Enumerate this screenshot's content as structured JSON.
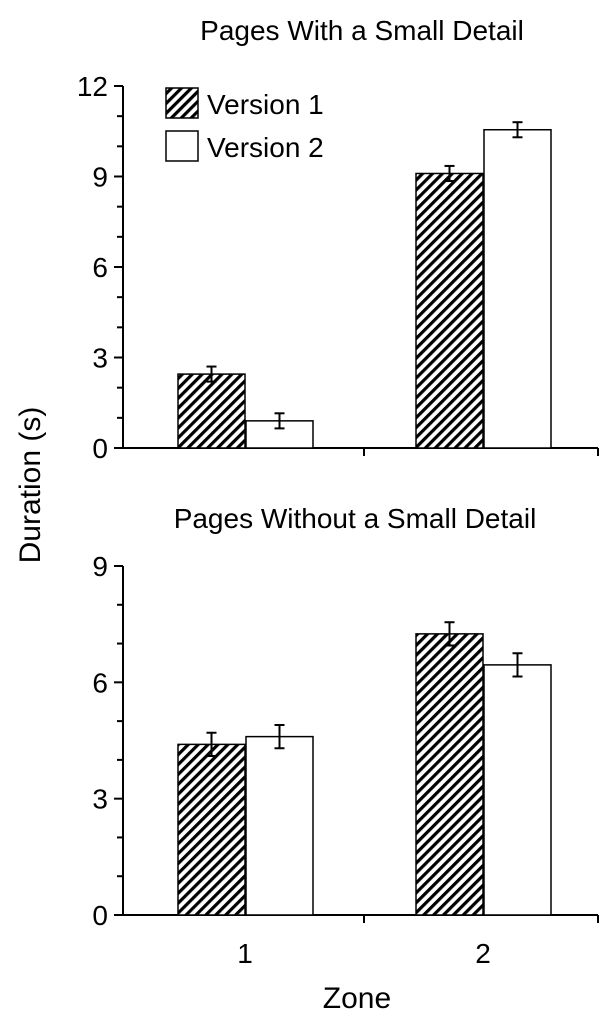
{
  "shared": {
    "ylabel": "Duration (s)",
    "xlabel": "Zone"
  },
  "chart_data": [
    {
      "type": "bar",
      "title": "Pages With a Small Detail",
      "categories": [
        "1",
        "2"
      ],
      "series": [
        {
          "name": "Version 1",
          "values": [
            2.45,
            9.1
          ],
          "error": [
            0.25,
            0.25
          ],
          "pattern": "hatched"
        },
        {
          "name": "Version 2",
          "values": [
            0.9,
            10.55
          ],
          "error": [
            0.25,
            0.25
          ],
          "pattern": "white"
        }
      ],
      "ylim": [
        0,
        12
      ],
      "yticks": [
        "0",
        "3",
        "6",
        "9",
        "12"
      ],
      "legend": "top-left",
      "grid": false
    },
    {
      "type": "bar",
      "title": "Pages Without a Small Detail",
      "categories": [
        "1",
        "2"
      ],
      "series": [
        {
          "name": "Version 1",
          "values": [
            4.4,
            7.25
          ],
          "error": [
            0.3,
            0.3
          ],
          "pattern": "hatched"
        },
        {
          "name": "Version 2",
          "values": [
            4.6,
            6.45
          ],
          "error": [
            0.3,
            0.3
          ],
          "pattern": "white"
        }
      ],
      "ylim": [
        0,
        9
      ],
      "yticks": [
        "0",
        "3",
        "6",
        "9"
      ],
      "grid": false
    }
  ]
}
